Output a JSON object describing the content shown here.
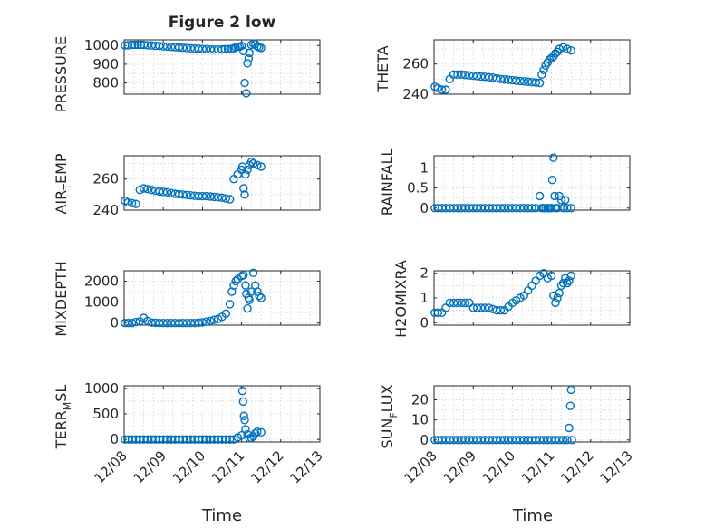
{
  "figure_title": "Figure 2 low",
  "chart_data": [
    {
      "type": "scatter",
      "ylabel": "PRESSURE",
      "ylim": [
        740,
        1030
      ],
      "yticks": [
        800,
        900,
        1000
      ],
      "ytick_labels": [
        "800",
        "900",
        "1000"
      ],
      "xlim": [
        0,
        5
      ],
      "xticks": [
        0,
        1,
        2,
        3,
        4,
        5
      ],
      "grid": true,
      "series": [
        {
          "x": [
            0.02,
            0.1,
            0.2,
            0.35,
            0.5,
            0.7,
            0.9,
            1.1,
            1.3,
            1.5,
            1.7,
            1.9,
            2.1,
            2.3,
            2.5,
            2.65,
            2.75,
            2.8,
            2.85,
            2.9,
            2.95,
            3.0,
            3.05,
            3.08,
            3.12,
            3.15,
            3.18,
            3.2,
            3.25,
            3.3,
            3.35,
            3.4,
            3.45,
            3.5
          ],
          "y": [
            1000,
            1001,
            1003,
            1004,
            1003,
            1000,
            997,
            994,
            991,
            988,
            985,
            983,
            980,
            978,
            979,
            981,
            982,
            985,
            990,
            993,
            994,
            998,
            970,
            800,
            745,
            905,
            930,
            960,
            1003,
            1010,
            1008,
            995,
            990,
            987
          ]
        }
      ]
    },
    {
      "type": "scatter",
      "ylabel": "THETA",
      "ylim": [
        240,
        276
      ],
      "yticks": [
        240,
        260
      ],
      "ytick_labels": [
        "240",
        "260"
      ],
      "xlim": [
        0,
        5
      ],
      "xticks": [
        0,
        1,
        2,
        3,
        4,
        5
      ],
      "grid": true,
      "series": [
        {
          "x": [
            0.02,
            0.1,
            0.2,
            0.3,
            0.4,
            0.5,
            0.6,
            0.7,
            0.9,
            1.1,
            1.3,
            1.5,
            1.7,
            1.9,
            2.1,
            2.3,
            2.5,
            2.7,
            2.75,
            2.8,
            2.85,
            2.9,
            2.95,
            3.0,
            3.05,
            3.1,
            3.15,
            3.2,
            3.3,
            3.4,
            3.5
          ],
          "y": [
            245,
            244,
            243,
            243,
            250,
            253,
            253,
            253,
            252.5,
            252,
            251.5,
            251,
            250,
            249.5,
            249,
            248.5,
            248,
            247.5,
            253,
            256,
            259,
            261,
            263,
            264,
            265,
            267,
            268,
            270,
            271,
            270,
            269
          ]
        }
      ]
    },
    {
      "type": "scatter",
      "ylabel": "AIR_TEMP",
      "ylim": [
        240,
        275
      ],
      "yticks": [
        240,
        260
      ],
      "ytick_labels": [
        "240",
        "260"
      ],
      "xlim": [
        0,
        5
      ],
      "xticks": [
        0,
        1,
        2,
        3,
        4,
        5
      ],
      "grid": true,
      "series": [
        {
          "x": [
            0.02,
            0.1,
            0.2,
            0.3,
            0.4,
            0.5,
            0.6,
            0.7,
            0.9,
            1.1,
            1.3,
            1.5,
            1.7,
            1.9,
            2.1,
            2.3,
            2.5,
            2.7,
            2.8,
            2.9,
            3.0,
            3.02,
            3.05,
            3.08,
            3.1,
            3.15,
            3.2,
            3.25,
            3.3,
            3.4,
            3.5
          ],
          "y": [
            246,
            245,
            244.5,
            244,
            253,
            254,
            253.5,
            253,
            252,
            251.5,
            250.5,
            250,
            249.5,
            249,
            249,
            248.5,
            248,
            247,
            260,
            263,
            266,
            268,
            254,
            250,
            263,
            266,
            269,
            271,
            270,
            269,
            268
          ]
        }
      ]
    },
    {
      "type": "scatter",
      "ylabel": "RAINFALL",
      "ylim": [
        -0.05,
        1.3
      ],
      "yticks": [
        0,
        0.5,
        1
      ],
      "ytick_labels": [
        "0",
        "0.5",
        "1"
      ],
      "xlim": [
        0,
        5
      ],
      "xticks": [
        0,
        1,
        2,
        3,
        4,
        5
      ],
      "grid": true,
      "series": [
        {
          "x": [
            0.02,
            0.2,
            0.4,
            0.6,
            0.8,
            1.0,
            1.2,
            1.4,
            1.6,
            1.8,
            2.0,
            2.2,
            2.4,
            2.6,
            2.7,
            2.75,
            2.8,
            2.85,
            2.9,
            2.95,
            3.0,
            3.02,
            3.05,
            3.08,
            3.1,
            3.15,
            3.2,
            3.25,
            3.3,
            3.35,
            3.4,
            3.5
          ],
          "y": [
            0,
            0,
            0,
            0,
            0,
            0,
            0,
            0,
            0,
            0,
            0,
            0,
            0,
            0,
            0.3,
            0,
            0,
            0,
            0,
            0,
            0,
            0.7,
            1.25,
            0.3,
            0,
            0,
            0.3,
            0.2,
            0,
            0.2,
            0,
            0
          ]
        }
      ]
    },
    {
      "type": "scatter",
      "ylabel": "MIXDEPTH",
      "ylim": [
        -100,
        2500
      ],
      "yticks": [
        0,
        1000,
        2000
      ],
      "ytick_labels": [
        "0",
        "1000",
        "2000"
      ],
      "xlim": [
        0,
        5
      ],
      "xticks": [
        0,
        1,
        2,
        3,
        4,
        5
      ],
      "grid": true,
      "series": [
        {
          "x": [
            0.02,
            0.1,
            0.2,
            0.3,
            0.4,
            0.5,
            0.6,
            0.7,
            0.8,
            1.0,
            1.2,
            1.4,
            1.6,
            1.8,
            2.0,
            2.2,
            2.4,
            2.5,
            2.6,
            2.7,
            2.75,
            2.8,
            2.85,
            2.9,
            3.0,
            3.05,
            3.1,
            3.12,
            3.15,
            3.18,
            3.2,
            3.25,
            3.3,
            3.35,
            3.4,
            3.45,
            3.5
          ],
          "y": [
            0,
            0,
            0,
            50,
            80,
            250,
            100,
            20,
            10,
            0,
            0,
            0,
            0,
            0,
            30,
            100,
            200,
            300,
            450,
            900,
            1500,
            1800,
            2000,
            2100,
            2250,
            2300,
            1800,
            1400,
            700,
            1200,
            1100,
            1500,
            2400,
            1800,
            1500,
            1300,
            1200
          ]
        }
      ]
    },
    {
      "type": "scatter",
      "ylabel": "H2OMIXRA",
      "ylim": [
        -0.1,
        2.1
      ],
      "yticks": [
        0,
        1,
        2
      ],
      "ytick_labels": [
        "0",
        "1",
        "2"
      ],
      "xlim": [
        0,
        5
      ],
      "xticks": [
        0,
        1,
        2,
        3,
        4,
        5
      ],
      "grid": true,
      "series": [
        {
          "x": [
            0.02,
            0.1,
            0.2,
            0.3,
            0.4,
            0.5,
            0.7,
            0.9,
            1.0,
            1.2,
            1.4,
            1.6,
            1.8,
            2.0,
            2.1,
            2.2,
            2.3,
            2.4,
            2.5,
            2.6,
            2.7,
            2.8,
            2.9,
            3.0,
            3.05,
            3.1,
            3.15,
            3.2,
            3.25,
            3.3,
            3.35,
            3.4,
            3.45,
            3.5
          ],
          "y": [
            0.4,
            0.4,
            0.4,
            0.6,
            0.8,
            0.8,
            0.8,
            0.8,
            0.6,
            0.6,
            0.6,
            0.5,
            0.5,
            0.8,
            0.9,
            1.0,
            1.1,
            1.3,
            1.5,
            1.7,
            1.9,
            2.0,
            1.8,
            1.9,
            1.1,
            0.8,
            1.0,
            1.2,
            1.5,
            1.6,
            1.8,
            1.6,
            1.7,
            1.9
          ]
        }
      ]
    },
    {
      "type": "scatter",
      "ylabel": "TERR_MSL",
      "ylim": [
        -50,
        1050
      ],
      "yticks": [
        0,
        500,
        1000
      ],
      "ytick_labels": [
        "0",
        "500",
        "1000"
      ],
      "xlim": [
        0,
        5
      ],
      "xticks": [
        0,
        1,
        2,
        3,
        4,
        5
      ],
      "grid": true,
      "series": [
        {
          "x": [
            0.02,
            0.2,
            0.4,
            0.6,
            0.8,
            1.0,
            1.2,
            1.4,
            1.6,
            1.8,
            2.0,
            2.2,
            2.4,
            2.6,
            2.8,
            2.9,
            3.0,
            3.02,
            3.04,
            3.06,
            3.08,
            3.1,
            3.15,
            3.2,
            3.25,
            3.3,
            3.35,
            3.4,
            3.5
          ],
          "y": [
            0,
            0,
            0,
            0,
            0,
            0,
            0,
            0,
            0,
            0,
            0,
            0,
            0,
            0,
            0,
            40,
            80,
            950,
            740,
            460,
            380,
            200,
            100,
            20,
            30,
            60,
            120,
            150,
            140
          ]
        }
      ]
    },
    {
      "type": "scatter",
      "ylabel": "SUN_FLUX",
      "ylim": [
        -1,
        27
      ],
      "yticks": [
        0,
        10,
        20
      ],
      "ytick_labels": [
        "0",
        "10",
        "20"
      ],
      "xlim": [
        0,
        5
      ],
      "xticks": [
        0,
        1,
        2,
        3,
        4,
        5
      ],
      "xtick_labels": [
        "12/08",
        "12/09",
        "12/10",
        "12/11",
        "12/12",
        "12/13"
      ],
      "grid": true,
      "series": [
        {
          "x": [
            0.02,
            0.2,
            0.4,
            0.6,
            0.8,
            1.0,
            1.2,
            1.4,
            1.6,
            1.8,
            2.0,
            2.2,
            2.4,
            2.6,
            2.8,
            3.0,
            3.1,
            3.2,
            3.3,
            3.4,
            3.45,
            3.48,
            3.5,
            3.52
          ],
          "y": [
            0,
            0,
            0,
            0,
            0,
            0,
            0,
            0,
            0,
            0,
            0,
            0,
            0,
            0,
            0,
            0,
            0,
            0,
            0,
            0,
            6,
            17,
            25,
            0
          ]
        }
      ]
    }
  ],
  "labels": {
    "pressure": "PRESSURE",
    "theta": "THETA",
    "air": "AIR",
    "temp_sub": "T",
    "emp": "EMP",
    "rainfall": "RAINFALL",
    "mixdepth": "MIXDEPTH",
    "h2o": "H2OMIXRA",
    "terr": "TERR",
    "m_sub": "M",
    "sl": "SL",
    "sun": "SUN",
    "f_sub": "F",
    "lux": "LUX",
    "time": "Time"
  },
  "xtick_labels": [
    "12/08",
    "12/09",
    "12/10",
    "12/11",
    "12/12",
    "12/13"
  ]
}
